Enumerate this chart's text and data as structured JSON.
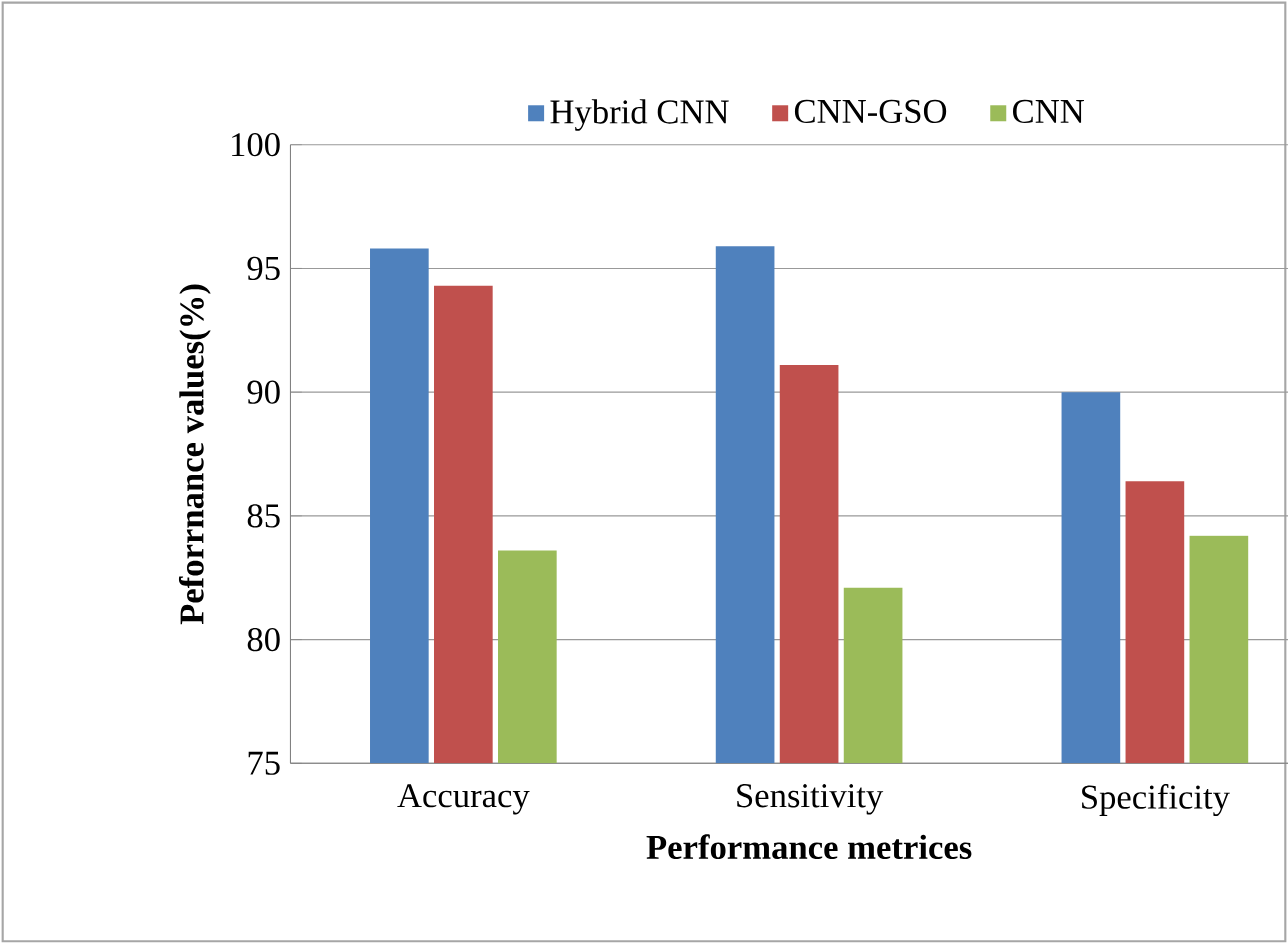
{
  "chart_data": {
    "type": "bar",
    "xlabel": "Performance metrices",
    "ylabel": "Peforrnance values(%)",
    "categories": [
      "Accuracy",
      "Sensitivity",
      "Specificity"
    ],
    "series": [
      {
        "name": "Hybrid CNN",
        "color": "#4f81bd",
        "values": [
          95.8,
          95.9,
          90.0
        ]
      },
      {
        "name": "CNN-GSO",
        "color": "#c0504d",
        "values": [
          94.3,
          91.1,
          86.4
        ]
      },
      {
        "name": "CNN",
        "color": "#9bbb59",
        "values": [
          83.6,
          82.1,
          84.2
        ]
      }
    ],
    "ylim": [
      75,
      100
    ],
    "yticks": [
      75,
      80,
      85,
      90,
      95,
      100
    ],
    "grid": "y",
    "legend": "top"
  }
}
